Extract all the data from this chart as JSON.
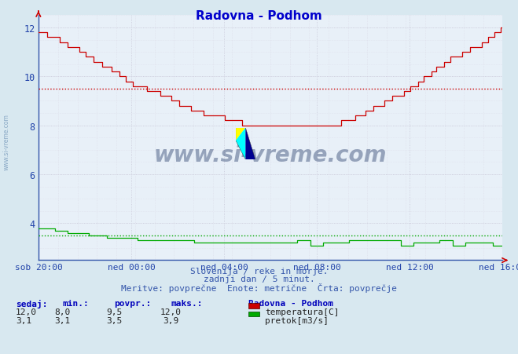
{
  "title": "Radovna - Podhom",
  "title_color": "#0000cc",
  "bg_color": "#d8e8f0",
  "plot_bg_color": "#e8f0f8",
  "grid_color_major": "#c8c8d8",
  "grid_color_minor": "#dcdce8",
  "temp_color": "#cc0000",
  "flow_color": "#00aa00",
  "temp_avg": 9.5,
  "flow_avg": 3.5,
  "ylim": [
    2.5,
    12.5
  ],
  "yticks": [
    4,
    6,
    8,
    10,
    12
  ],
  "xlabel_color": "#2244aa",
  "xtick_labels": [
    "sob 20:00",
    "ned 00:00",
    "ned 04:00",
    "ned 08:00",
    "ned 12:00",
    "ned 16:00"
  ],
  "subtitle1": "Slovenija / reke in morje.",
  "subtitle2": "zadnji dan / 5 minut.",
  "subtitle3": "Meritve: povprečne  Enote: metrične  Črta: povprečje",
  "legend_title": "Radovna - Podhom",
  "legend_temp": "temperatura[C]",
  "legend_flow": "pretok[m3/s]",
  "table_headers": [
    "sedaj:",
    "min.:",
    "povpr.:",
    "maks.:"
  ],
  "table_temp_vals": [
    "12,0",
    "8,0",
    "9,5",
    "12,0"
  ],
  "table_flow_vals": [
    "3,1",
    "3,1",
    "3,5",
    "3,9"
  ],
  "watermark": "www.si-vreme.com",
  "n_points": 288,
  "temp_kx": [
    0,
    12,
    24,
    36,
    48,
    60,
    72,
    84,
    96,
    108,
    120,
    132,
    144,
    156,
    168,
    180,
    192,
    204,
    216,
    228,
    240,
    252,
    264,
    276,
    287
  ],
  "temp_ky": [
    11.8,
    11.5,
    11.1,
    10.6,
    10.2,
    9.6,
    9.4,
    9.0,
    8.6,
    8.4,
    8.2,
    8.0,
    8.0,
    8.1,
    8.0,
    8.0,
    8.2,
    8.6,
    9.0,
    9.4,
    10.0,
    10.6,
    11.0,
    11.4,
    12.0
  ],
  "flow_kx": [
    0,
    6,
    12,
    24,
    36,
    48,
    60,
    72,
    96,
    120,
    144,
    160,
    180,
    200,
    220,
    240,
    260,
    280,
    287
  ],
  "flow_ky": [
    3.85,
    3.8,
    3.7,
    3.6,
    3.5,
    3.4,
    3.35,
    3.3,
    3.25,
    3.2,
    3.2,
    3.2,
    3.22,
    3.2,
    3.18,
    3.2,
    3.18,
    3.15,
    3.1
  ]
}
